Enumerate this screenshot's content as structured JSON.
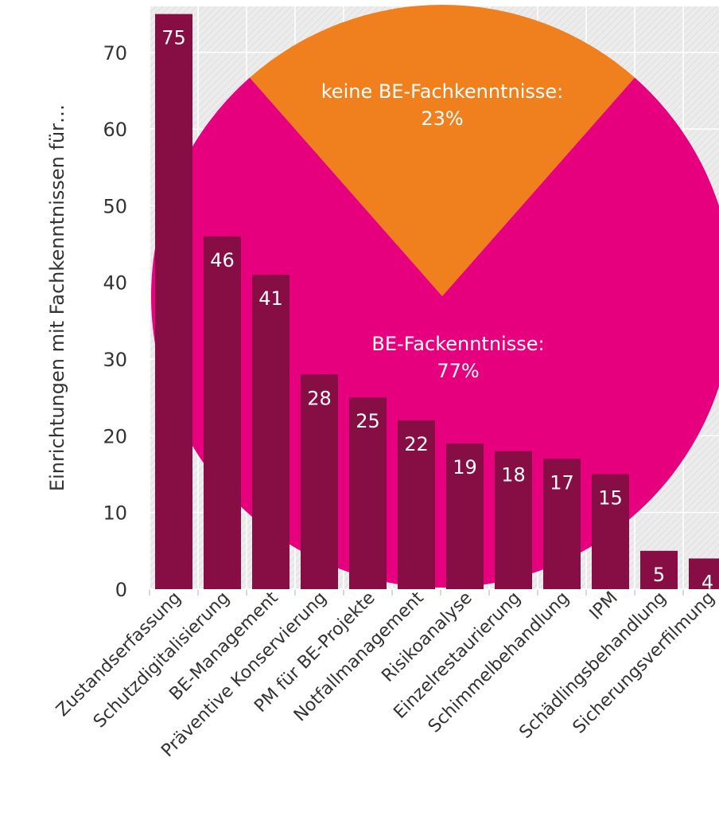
{
  "chart_data": [
    {
      "type": "pie",
      "categories": [
        "keine BE-Fachkenntnisse:",
        "BE-Fackenntnisse:"
      ],
      "values": [
        23,
        77
      ],
      "value_labels": [
        "23%",
        "77%"
      ],
      "colors": [
        "#f07f1e",
        "#e6007e"
      ]
    },
    {
      "type": "bar",
      "ylabel": "Einrichtungen mit Fachkenntnissen für…",
      "categories": [
        "Zustandserfassung",
        "Schutzdigitalisierung",
        "BE-Management",
        "Präventive Konservierung",
        "PM für BE-Projekte",
        "Notfallmanagement",
        "Risikoanalyse",
        "Einzelrestaurierung",
        "Schimmelbehandlung",
        "IPM",
        "Schädlingsbehandlung",
        "Sicherungsverfilmung"
      ],
      "values": [
        75,
        46,
        41,
        28,
        25,
        22,
        19,
        18,
        17,
        15,
        5,
        4
      ],
      "color": "#870d45",
      "ylim": [
        0,
        76
      ],
      "yticks": [
        0,
        10,
        20,
        30,
        40,
        50,
        60,
        70
      ],
      "grid": true
    }
  ]
}
